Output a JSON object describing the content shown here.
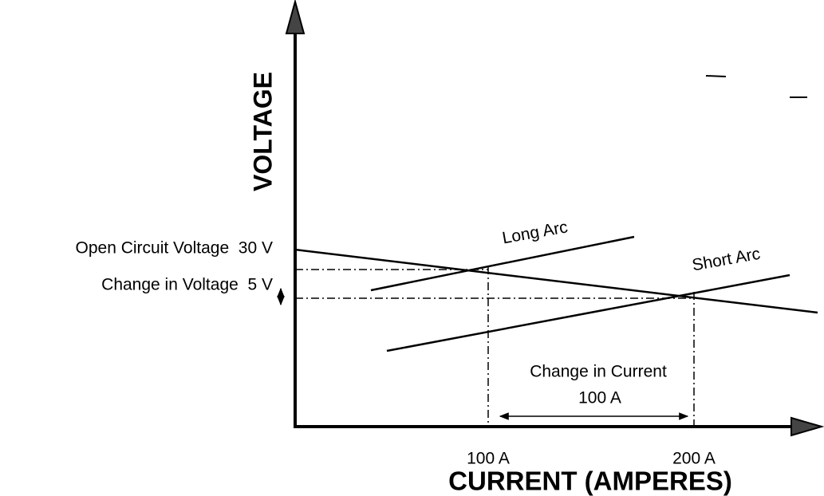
{
  "axes": {
    "y_label": "VOLTAGE",
    "x_label": "CURRENT (AMPERES)"
  },
  "y_labels": [
    "Open Circuit Voltage  30 V",
    "Change in Voltage  5 V"
  ],
  "x_labels": [
    "100 A",
    "200 A"
  ],
  "curves": [
    "Long Arc",
    "Short Arc"
  ],
  "current_change": {
    "label": "Change in Current",
    "value": "100 A"
  }
}
